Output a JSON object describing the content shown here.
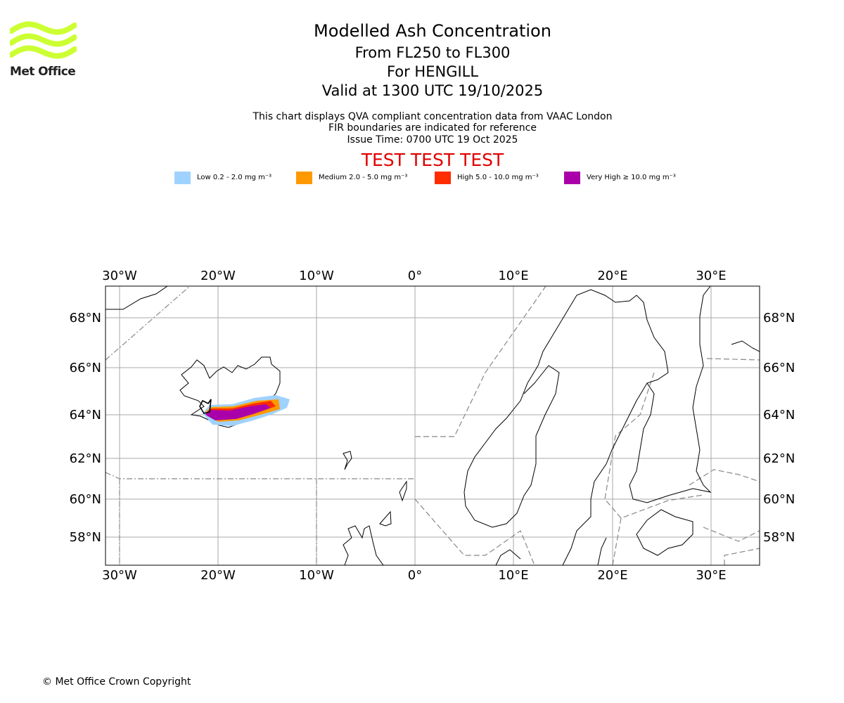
{
  "header": {
    "logo_text": "Met Office",
    "logo_color": "#ccff33",
    "title": "Modelled Ash Concentration",
    "subtitle_levels": "From FL250 to FL300",
    "subtitle_volcano": "For HENGILL",
    "subtitle_valid": "Valid at 1300 UTC 19/10/2025",
    "note_data": "This chart displays QVA compliant concentration data from VAAC London",
    "note_fir": "FIR boundaries are indicated for reference",
    "note_issue": "Issue Time: 0700 UTC 19 Oct 2025",
    "test_banner": "TEST TEST TEST",
    "test_color": "#e00000"
  },
  "legend": [
    {
      "label": "Low 0.2 - 2.0 mg m⁻³",
      "color": "#a0d2ff"
    },
    {
      "label": "Medium 2.0 - 5.0 mg m⁻³",
      "color": "#ff9900"
    },
    {
      "label": "High 5.0 - 10.0 mg m⁻³",
      "color": "#ff2c00"
    },
    {
      "label": "Very High ≥ 10.0 mg m⁻³",
      "color": "#aa00aa"
    }
  ],
  "map": {
    "lon_labels": [
      "30°W",
      "20°W",
      "10°W",
      "0°",
      "10°E",
      "20°E",
      "30°E"
    ],
    "lat_labels": [
      "68°N",
      "66°N",
      "64°N",
      "62°N",
      "60°N",
      "58°N"
    ],
    "gridline_color": "#aaaaaa",
    "fir_color": "#888888",
    "coast_color": "#000000"
  },
  "footer": {
    "copyright": "© Met Office Crown Copyright"
  }
}
